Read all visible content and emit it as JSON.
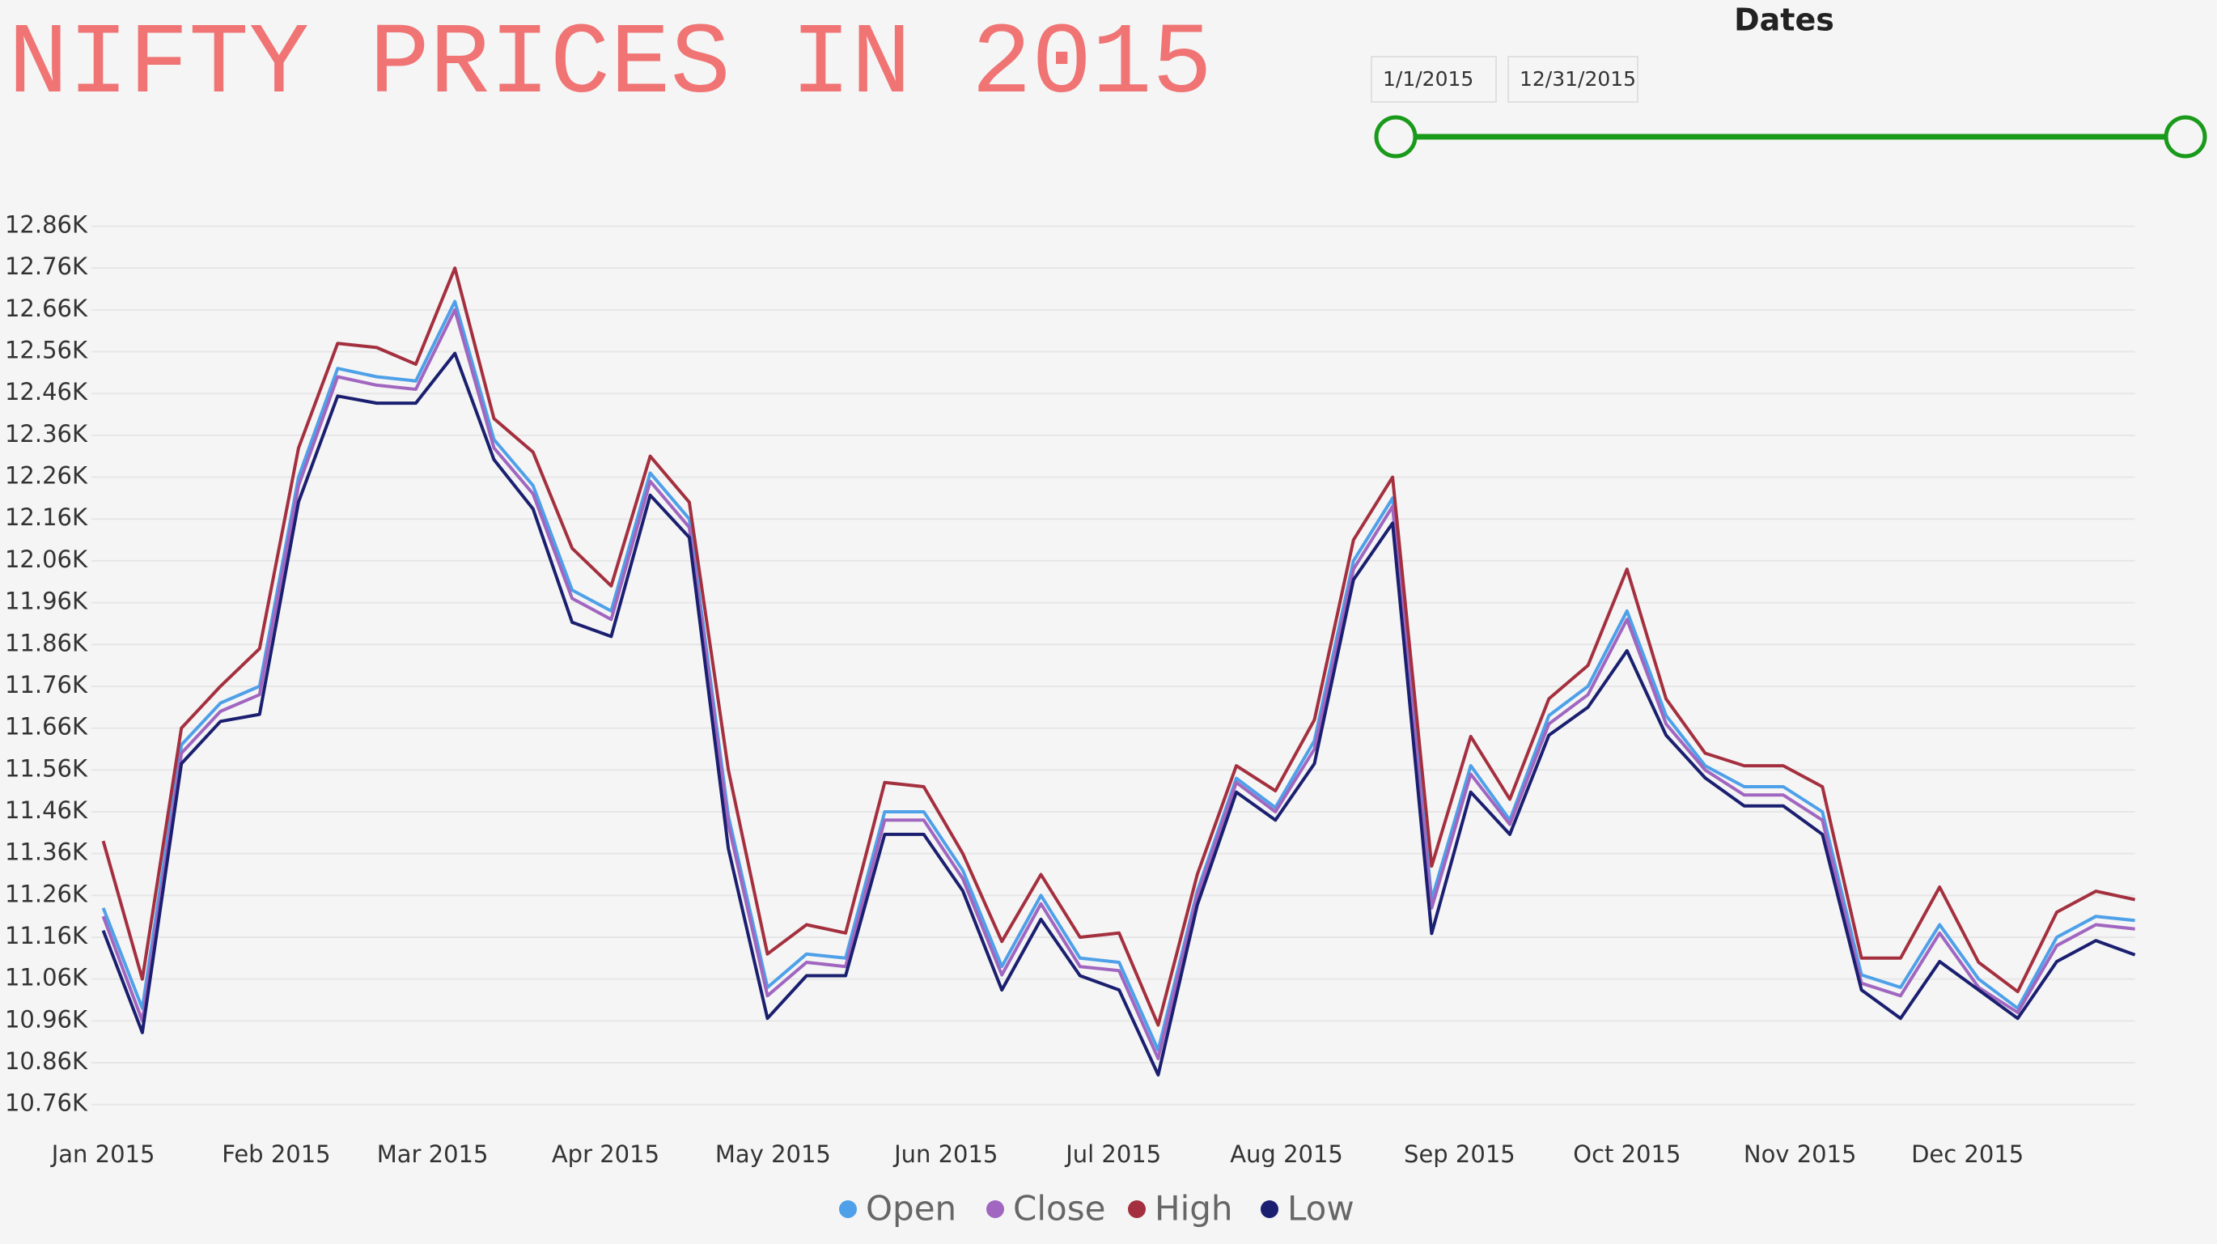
{
  "header": {
    "title": "NIFTY PRICES IN 2015"
  },
  "slicer": {
    "title": "Dates",
    "start": "1/1/2015",
    "end": "12/31/2015"
  },
  "chart_data": {
    "type": "line",
    "x": [
      "2015-01-01",
      "2015-01-08",
      "2015-01-15",
      "2015-01-22",
      "2015-01-29",
      "2015-02-05",
      "2015-02-12",
      "2015-02-19",
      "2015-02-26",
      "2015-03-05",
      "2015-03-12",
      "2015-03-19",
      "2015-03-26",
      "2015-04-02",
      "2015-04-09",
      "2015-04-16",
      "2015-04-23",
      "2015-04-30",
      "2015-05-07",
      "2015-05-14",
      "2015-05-21",
      "2015-05-28",
      "2015-06-04",
      "2015-06-11",
      "2015-06-18",
      "2015-06-25",
      "2015-07-02",
      "2015-07-09",
      "2015-07-16",
      "2015-07-23",
      "2015-07-30",
      "2015-08-06",
      "2015-08-13",
      "2015-08-20",
      "2015-08-27",
      "2015-09-03",
      "2015-09-10",
      "2015-09-17",
      "2015-09-24",
      "2015-10-01",
      "2015-10-08",
      "2015-10-15",
      "2015-10-22",
      "2015-10-29",
      "2015-11-05",
      "2015-11-12",
      "2015-11-19",
      "2015-11-26",
      "2015-12-03",
      "2015-12-10",
      "2015-12-17",
      "2015-12-24",
      "2015-12-31"
    ],
    "series": [
      {
        "name": "Open",
        "color": "#4ea0e8",
        "values": [
          11230,
          10990,
          11620,
          11720,
          11760,
          12260,
          12520,
          12500,
          12490,
          12680,
          12350,
          12240,
          11990,
          11940,
          12270,
          12160,
          11450,
          11040,
          11120,
          11110,
          11460,
          11460,
          11320,
          11090,
          11260,
          11110,
          11100,
          10890,
          11270,
          11540,
          11470,
          11630,
          12060,
          12210,
          11250,
          11570,
          11440,
          11690,
          11760,
          11940,
          11690,
          11570,
          11520,
          11520,
          11460,
          11070,
          11040,
          11190,
          11060,
          10990,
          11160,
          11210,
          11200
        ]
      },
      {
        "name": "Close",
        "color": "#a066c0",
        "values": [
          11210,
          10960,
          11600,
          11700,
          11740,
          12240,
          12500,
          12480,
          12470,
          12660,
          12330,
          12220,
          11970,
          11920,
          12250,
          12140,
          11430,
          11020,
          11100,
          11090,
          11440,
          11440,
          11300,
          11070,
          11240,
          11090,
          11080,
          10870,
          11260,
          11530,
          11460,
          11610,
          12040,
          12190,
          11230,
          11550,
          11430,
          11670,
          11740,
          11920,
          11670,
          11560,
          11500,
          11500,
          11440,
          11050,
          11020,
          11170,
          11040,
          10980,
          11140,
          11190,
          11180
        ]
      },
      {
        "name": "High",
        "color": "#a4303f",
        "values": [
          11390,
          11060,
          11660,
          11760,
          11850,
          12330,
          12580,
          12570,
          12530,
          12760,
          12400,
          12320,
          12090,
          12000,
          12310,
          12200,
          11560,
          11120,
          11190,
          11170,
          11530,
          11520,
          11360,
          11150,
          11310,
          11160,
          11170,
          10950,
          11310,
          11570,
          11510,
          11680,
          12110,
          12260,
          11330,
          11640,
          11490,
          11730,
          11810,
          12040,
          11730,
          11600,
          11570,
          11570,
          11520,
          11110,
          11110,
          11280,
          11100,
          11030,
          11220,
          11270,
          11250
        ]
      },
      {
        "name": "Low",
        "color": "#1a1f70",
        "values": [
          11176,
          10932,
          11575,
          11676,
          11693,
          12201,
          12454,
          12437,
          12437,
          12556,
          12302,
          12184,
          11913,
          11879,
          12217,
          12116,
          11372,
          10966,
          11068,
          11068,
          11406,
          11406,
          11271,
          11034,
          11203,
          11068,
          11034,
          10831,
          11237,
          11507,
          11440,
          11575,
          12015,
          12150,
          11169,
          11507,
          11406,
          11643,
          11710,
          11845,
          11643,
          11541,
          11474,
          11474,
          11406,
          11034,
          10966,
          11102,
          11034,
          10966,
          11102,
          11152,
          11118
        ]
      }
    ],
    "xlim": [
      "2015-01-01",
      "2015-12-31"
    ],
    "xticks": [
      {
        "value": "2015-01-01",
        "label": "Jan 2015"
      },
      {
        "value": "2015-02-01",
        "label": "Feb 2015"
      },
      {
        "value": "2015-03-01",
        "label": "Mar 2015"
      },
      {
        "value": "2015-04-01",
        "label": "Apr 2015"
      },
      {
        "value": "2015-05-01",
        "label": "May 2015"
      },
      {
        "value": "2015-06-01",
        "label": "Jun 2015"
      },
      {
        "value": "2015-07-01",
        "label": "Jul 2015"
      },
      {
        "value": "2015-08-01",
        "label": "Aug 2015"
      },
      {
        "value": "2015-09-01",
        "label": "Sep 2015"
      },
      {
        "value": "2015-10-01",
        "label": "Oct 2015"
      },
      {
        "value": "2015-11-01",
        "label": "Nov 2015"
      },
      {
        "value": "2015-12-01",
        "label": "Dec 2015"
      }
    ],
    "ylim": [
      10700,
      12950
    ],
    "yticks": [
      {
        "value": 10760,
        "label": "10.76K"
      },
      {
        "value": 10860,
        "label": "10.86K"
      },
      {
        "value": 10960,
        "label": "10.96K"
      },
      {
        "value": 11060,
        "label": "11.06K"
      },
      {
        "value": 11160,
        "label": "11.16K"
      },
      {
        "value": 11260,
        "label": "11.26K"
      },
      {
        "value": 11360,
        "label": "11.36K"
      },
      {
        "value": 11460,
        "label": "11.46K"
      },
      {
        "value": 11560,
        "label": "11.56K"
      },
      {
        "value": 11660,
        "label": "11.66K"
      },
      {
        "value": 11760,
        "label": "11.76K"
      },
      {
        "value": 11860,
        "label": "11.86K"
      },
      {
        "value": 11960,
        "label": "11.96K"
      },
      {
        "value": 12060,
        "label": "12.06K"
      },
      {
        "value": 12160,
        "label": "12.16K"
      },
      {
        "value": 12260,
        "label": "12.26K"
      },
      {
        "value": 12360,
        "label": "12.36K"
      },
      {
        "value": 12460,
        "label": "12.46K"
      },
      {
        "value": 12560,
        "label": "12.56K"
      },
      {
        "value": 12660,
        "label": "12.66K"
      },
      {
        "value": 12760,
        "label": "12.76K"
      },
      {
        "value": 12860,
        "label": "12.86K"
      }
    ],
    "grid": true,
    "legend": "bottom"
  }
}
